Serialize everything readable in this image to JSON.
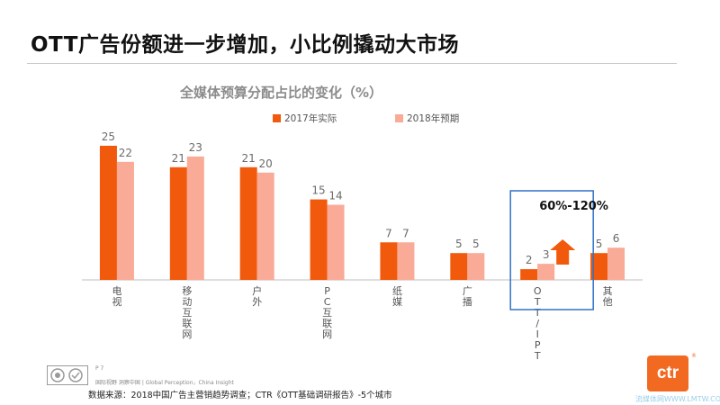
{
  "slide": {
    "title": "OTT广告份额进一步增加，小比例撬动大市场"
  },
  "chart_data": {
    "type": "bar",
    "title": "全媒体预算分配占比的变化（%）",
    "categories": [
      "电视",
      "移动互联网",
      "户外",
      "PC互联网",
      "纸媒",
      "广播",
      "OTT/IPTV",
      "其他"
    ],
    "series": [
      {
        "name": "2017年实际",
        "values": [
          25,
          21,
          21,
          15,
          7,
          5,
          2,
          5
        ],
        "color": "#f15a0c"
      },
      {
        "name": "2018年预期",
        "values": [
          22,
          23,
          20,
          14,
          7,
          5,
          3,
          6
        ],
        "color": "#f9ab97"
      }
    ],
    "ylim": [
      0,
      26
    ],
    "annotation": {
      "text": "60%-120%",
      "category": "OTT/IPTV",
      "box_color": "#2f73c9",
      "arrow_color": "#f15a0c"
    }
  },
  "footer": {
    "page": "P 7",
    "tagline": "国际视野  洞察中国 |  Global Perception，China Insight",
    "source": "数据来源：2018中国广告主营销趋势调查；CTR《OTT基础调研报告》-5个城市",
    "logo_text": "ctr",
    "logo_mark": "®",
    "watermark": "流媒体网WWW.LMTW.COM"
  }
}
